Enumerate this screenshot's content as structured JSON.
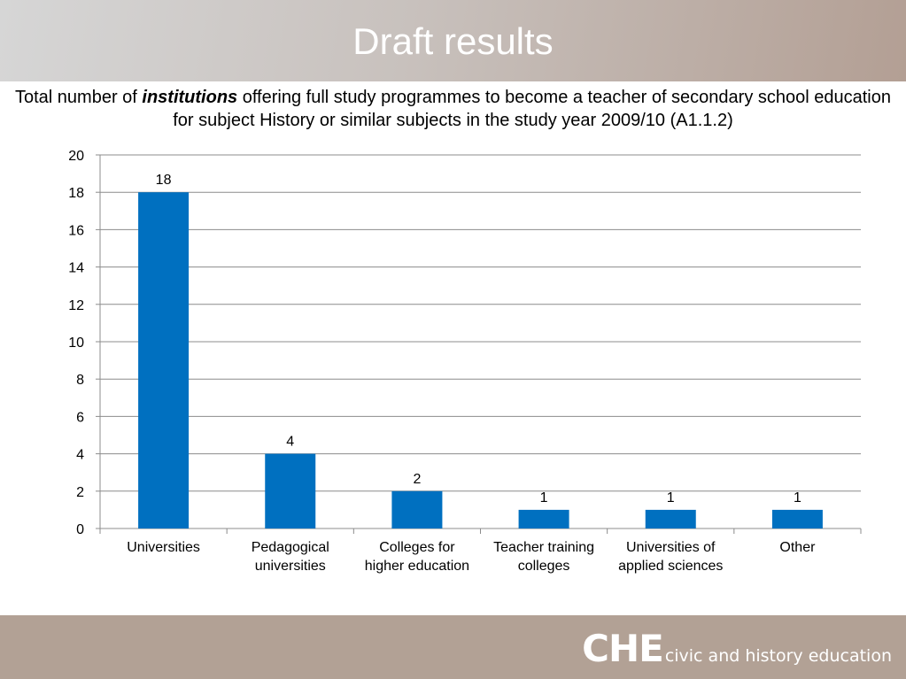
{
  "header": {
    "title": "Draft results"
  },
  "subtitle": {
    "prefix": "Total number of ",
    "emphasis": "institutions",
    "suffix": " offering full study programmes to become a teacher of secondary school education for subject History or similar subjects in the study year 2009/10 (A1.1.2)"
  },
  "chart_data": {
    "type": "bar",
    "categories": [
      [
        "Universities"
      ],
      [
        "Pedagogical",
        "universities"
      ],
      [
        "Colleges for",
        "higher education"
      ],
      [
        "Teacher training",
        "colleges"
      ],
      [
        "Universities of",
        "applied sciences"
      ],
      [
        "Other"
      ]
    ],
    "values": [
      18,
      4,
      2,
      1,
      1,
      1
    ],
    "ylim": [
      0,
      20
    ],
    "yticks": [
      0,
      2,
      4,
      6,
      8,
      10,
      12,
      14,
      16,
      18,
      20
    ],
    "grid": true,
    "data_labels": true,
    "bar_color": "#0070c0",
    "grid_color": "#8c8c8c"
  },
  "footer": {
    "logo_big": "CHE",
    "logo_small": "civic and history education"
  }
}
